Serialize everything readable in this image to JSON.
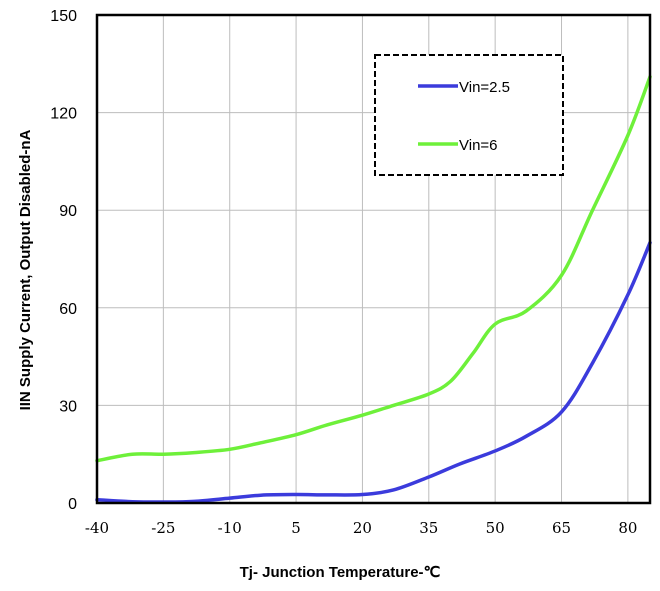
{
  "chart_data": {
    "type": "line",
    "xlabel": "Tj- Junction Temperature-℃",
    "ylabel": "IIN Supply Current, Output Disabled-nA",
    "xlim": [
      -40,
      85
    ],
    "ylim": [
      0,
      150
    ],
    "x_ticks": [
      "-40",
      "-25",
      "-10",
      "5",
      "20",
      "35",
      "50",
      "65",
      "80"
    ],
    "y_ticks": [
      "0",
      "30",
      "60",
      "90",
      "120",
      "150"
    ],
    "grid": true,
    "legend_position": "top-right",
    "series": [
      {
        "name": "Vin=2.5",
        "color": "#3b3bdc",
        "x": [
          -40,
          -32,
          -25,
          -18,
          -10,
          -3,
          5,
          12,
          20,
          27,
          35,
          42,
          50,
          57,
          65,
          72,
          80,
          85
        ],
        "y": [
          1.0,
          0.4,
          0.3,
          0.5,
          1.5,
          2.4,
          2.6,
          2.5,
          2.6,
          4.0,
          8.0,
          12.0,
          16.0,
          20.5,
          28.0,
          43.0,
          64.0,
          80.0
        ]
      },
      {
        "name": "Vin=6",
        "color": "#6ef03a",
        "x": [
          -40,
          -32,
          -25,
          -18,
          -10,
          -3,
          5,
          12,
          20,
          27,
          35,
          40,
          45,
          50,
          57,
          65,
          72,
          80,
          85
        ],
        "y": [
          13.0,
          15.0,
          15.0,
          15.5,
          16.5,
          18.5,
          21.0,
          24.0,
          27.0,
          30.0,
          33.5,
          37.5,
          46.0,
          55.0,
          59.0,
          70.0,
          90.0,
          113.0,
          131.0
        ]
      }
    ]
  }
}
